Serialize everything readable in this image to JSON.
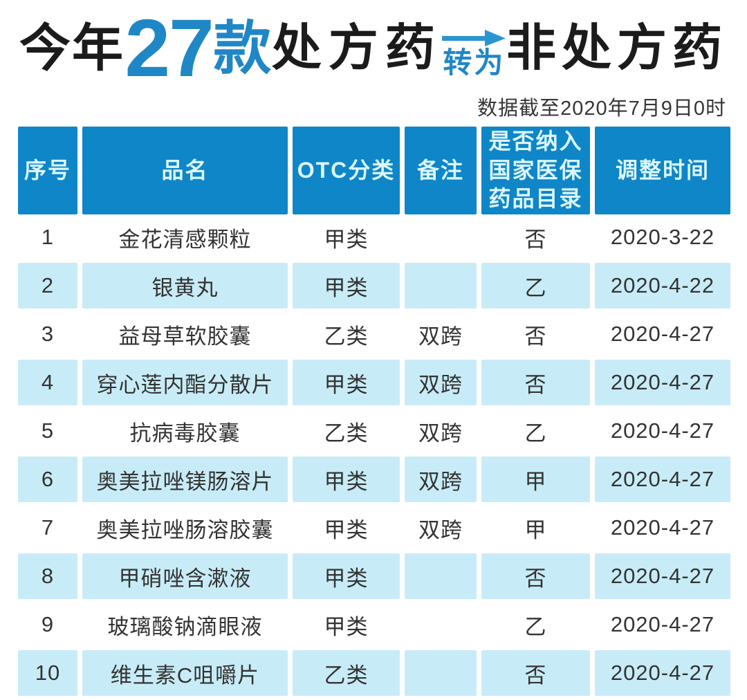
{
  "title": {
    "prefix": "今年",
    "count": "27",
    "unit": "款",
    "from": "处方药",
    "arrow_label": "转为",
    "to": "非处方药",
    "subtitle": "数据截至2020年7月9日0时"
  },
  "colors": {
    "title_blue": "#2087c7",
    "arrow_blue": "#2b95d2",
    "header_blue": "#0e86c8",
    "row_cyan": "#c8ecf7",
    "header_text": "#ddf7ff",
    "body_text": "#333333"
  },
  "table": {
    "header_display": [
      "序号",
      "品名",
      "OTC分类",
      "备注",
      "是否纳入\n国家医保\n药品目录",
      "调整时间"
    ]
  },
  "chart_data": {
    "type": "table",
    "title": "今年27款处方药转为非处方药",
    "note": "数据截至2020年7月9日0时",
    "columns": [
      "序号",
      "品名",
      "OTC分类",
      "备注",
      "是否纳入国家医保药品目录",
      "调整时间"
    ],
    "rows": [
      [
        "1",
        "金花清感颗粒",
        "甲类",
        "",
        "否",
        "2020-3-22"
      ],
      [
        "2",
        "银黄丸",
        "甲类",
        "",
        "乙",
        "2020-4-22"
      ],
      [
        "3",
        "益母草软胶囊",
        "乙类",
        "双跨",
        "否",
        "2020-4-27"
      ],
      [
        "4",
        "穿心莲内酯分散片",
        "甲类",
        "双跨",
        "否",
        "2020-4-27"
      ],
      [
        "5",
        "抗病毒胶囊",
        "乙类",
        "双跨",
        "乙",
        "2020-4-27"
      ],
      [
        "6",
        "奥美拉唑镁肠溶片",
        "甲类",
        "双跨",
        "甲",
        "2020-4-27"
      ],
      [
        "7",
        "奥美拉唑肠溶胶囊",
        "甲类",
        "双跨",
        "甲",
        "2020-4-27"
      ],
      [
        "8",
        "甲硝唑含漱液",
        "甲类",
        "",
        "否",
        "2020-4-27"
      ],
      [
        "9",
        "玻璃酸钠滴眼液",
        "甲类",
        "",
        "乙",
        "2020-4-27"
      ],
      [
        "10",
        "维生素C咀嚼片",
        "乙类",
        "",
        "否",
        "2020-4-27"
      ]
    ]
  }
}
